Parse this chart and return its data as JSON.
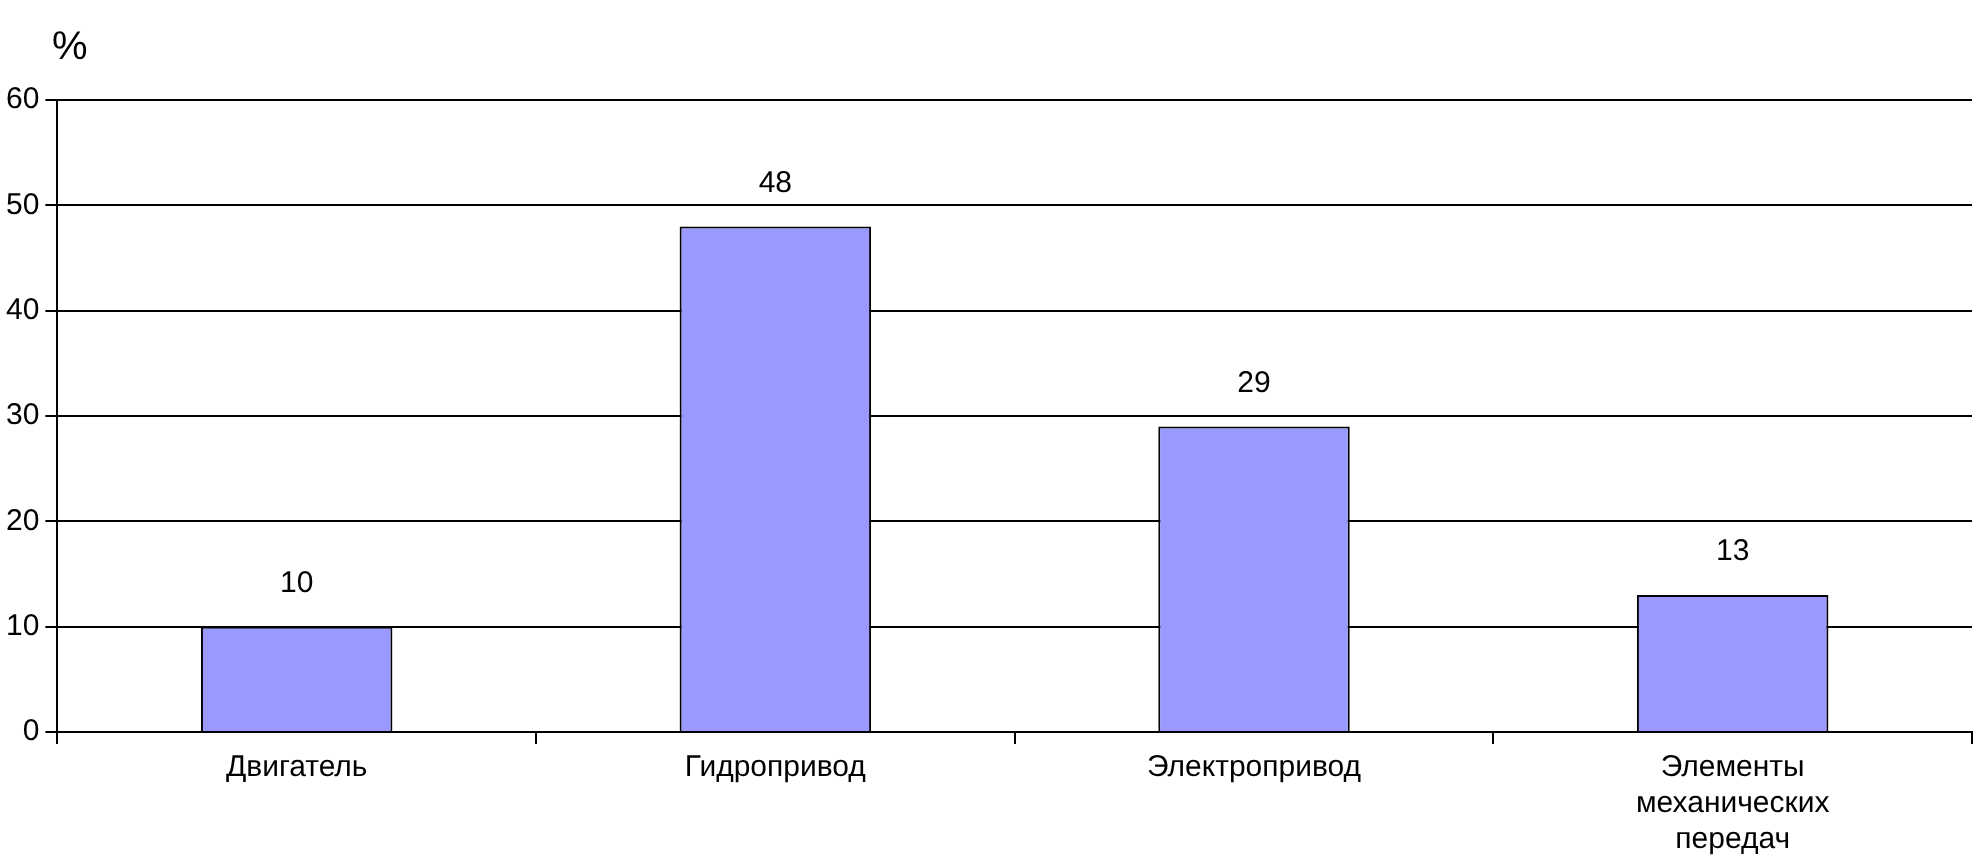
{
  "chart_data": {
    "type": "bar",
    "ylabel": "%",
    "categories": [
      "Двигатель",
      "Гидропривод",
      "Электропривод",
      "Элементы механических передач"
    ],
    "values": [
      10,
      48,
      29,
      13
    ],
    "color": "#9999ff",
    "ylim": [
      0,
      60
    ],
    "yticks": [
      0,
      10,
      20,
      30,
      40,
      50,
      60
    ],
    "grid": "y",
    "data_labels": true
  }
}
